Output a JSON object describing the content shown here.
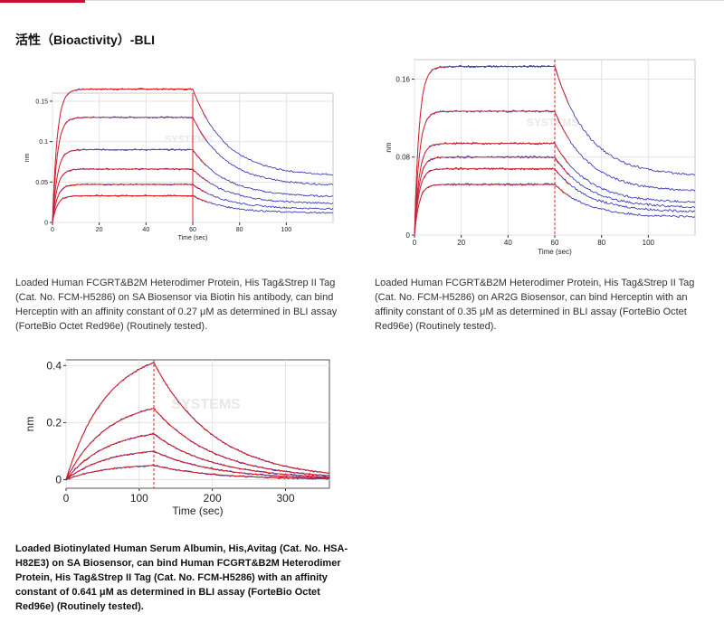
{
  "section_title": "活性（Bioactivity）-BLI",
  "captions": [
    "Loaded Human FCGRT&B2M Heterodimer Protein, His Tag&Strep II Tag (Cat. No. FCM-H5286) on SA Biosensor via Biotin his antibody, can bind Herceptin with an affinity constant of 0.27 μM as determined in BLI assay (ForteBio Octet Red96e) (Routinely tested).",
    "Loaded Human FCGRT&B2M Heterodimer Protein, His Tag&Strep II Tag (Cat. No. FCM-H5286) on AR2G Biosensor, can bind Herceptin with an affinity constant of 0.35 μM as determined in BLI assay (ForteBio Octet Red96e) (Routinely tested).",
    "Loaded Biotinylated Human Serum Albumin, His,Avitag (Cat. No. HSA-H82E3) on SA Biosensor, can bind Human FCGRT&B2M Heterodimer Protein, His Tag&Strep II Tag (Cat. No. FCM-H5286) with an affinity constant of 0.641 μM as determined in BLI assay (ForteBio Octet Red96e) (Routinely tested)."
  ],
  "chart_data": [
    {
      "type": "line",
      "xlabel": "Time (sec)",
      "ylabel": "nm",
      "xlim": [
        0,
        120
      ],
      "ylim": [
        0,
        0.16
      ],
      "xticks": [
        0,
        20,
        40,
        60,
        80,
        100
      ],
      "yticks": [
        0,
        0.05,
        0.1,
        0.15
      ],
      "ytick_labels": [
        "0",
        "0.05",
        "0.1",
        "0.15"
      ],
      "association_end": 60,
      "plateaus": [
        0.165,
        0.13,
        0.09,
        0.066,
        0.047,
        0.033
      ],
      "series_colors": {
        "measured": "#2929b8",
        "fit": "#e02020"
      }
    },
    {
      "type": "line",
      "xlabel": "Time (sec)",
      "ylabel": "nm",
      "xlim": [
        0,
        120
      ],
      "ylim": [
        0,
        0.18
      ],
      "xticks": [
        0,
        20,
        40,
        60,
        80,
        100
      ],
      "yticks": [
        0,
        0.08,
        0.16
      ],
      "ytick_labels": [
        "0",
        "0.08",
        "0.16"
      ],
      "association_end": 60,
      "plateaus": [
        0.173,
        0.127,
        0.094,
        0.08,
        0.068,
        0.052
      ],
      "series_colors": {
        "measured": "#2929b8",
        "fit": "#e02020"
      }
    },
    {
      "type": "line",
      "xlabel": "Time (sec)",
      "ylabel": "nm",
      "xlim": [
        0,
        360
      ],
      "ylim": [
        -0.03,
        0.42
      ],
      "xticks": [
        0,
        100,
        200,
        300
      ],
      "yticks": [
        0,
        0.2,
        0.4
      ],
      "ytick_labels": [
        "0",
        "0.2",
        "0.4"
      ],
      "association_end": 120,
      "peaks": [
        0.41,
        0.25,
        0.16,
        0.1,
        0.05
      ],
      "series_colors": {
        "measured": "#2929b8",
        "fit": "#e02020"
      }
    }
  ]
}
